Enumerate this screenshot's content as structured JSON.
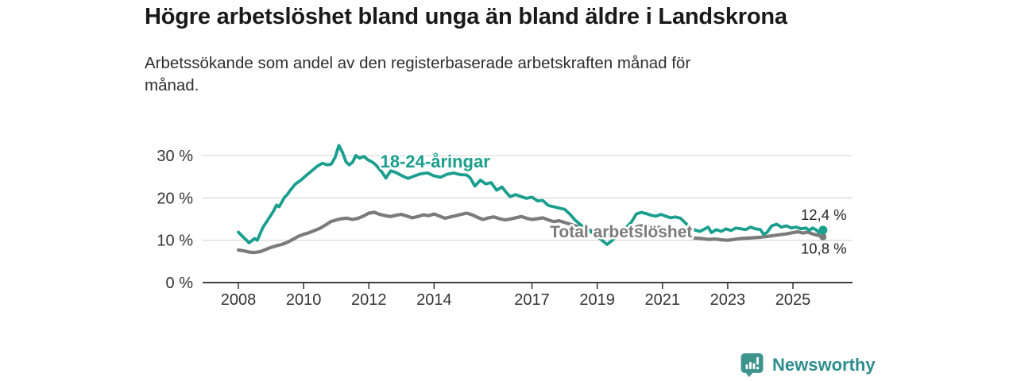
{
  "header": {
    "title": "Högre arbetslöshet bland unga än bland äldre i Landskrona",
    "subtitle": "Arbetssökande som andel av den registerbaserade arbetskraften månad för månad."
  },
  "chart_data": {
    "type": "line",
    "title": "Högre arbetslöshet bland unga än bland äldre i Landskrona",
    "xlabel": "",
    "ylabel": "Arbetssökande som andel av den registerbaserade arbetskraften",
    "x_axis": {
      "range": [
        2006.9,
        2026.8
      ],
      "ticks": [
        2008,
        2010,
        2012,
        2014,
        2017,
        2019,
        2021,
        2023,
        2025
      ]
    },
    "y_axis": {
      "range": [
        0,
        33.5
      ],
      "ticks": [
        {
          "value": 0,
          "label": "0 %"
        },
        {
          "value": 10,
          "label": "10 %"
        },
        {
          "value": 20,
          "label": "20 %"
        },
        {
          "value": 30,
          "label": "30 %"
        }
      ],
      "grid": true
    },
    "legend_position": "inline-labels",
    "series": [
      {
        "name": "Total arbetslöshet",
        "color": "#7b7b7b",
        "end_value": 10.8,
        "end_label": "10,8 %",
        "inline_label": {
          "text": "Total arbetslöshet",
          "x": 2017.55,
          "y": 10.7
        },
        "points": [
          [
            2008.0,
            7.7
          ],
          [
            2008.17,
            7.5
          ],
          [
            2008.33,
            7.2
          ],
          [
            2008.5,
            7.1
          ],
          [
            2008.67,
            7.3
          ],
          [
            2008.83,
            7.8
          ],
          [
            2009.0,
            8.3
          ],
          [
            2009.17,
            8.7
          ],
          [
            2009.33,
            9.0
          ],
          [
            2009.5,
            9.5
          ],
          [
            2009.67,
            10.2
          ],
          [
            2009.83,
            10.9
          ],
          [
            2010.0,
            11.4
          ],
          [
            2010.17,
            11.8
          ],
          [
            2010.33,
            12.3
          ],
          [
            2010.5,
            12.8
          ],
          [
            2010.67,
            13.6
          ],
          [
            2010.83,
            14.4
          ],
          [
            2011.0,
            14.8
          ],
          [
            2011.17,
            15.1
          ],
          [
            2011.33,
            15.2
          ],
          [
            2011.5,
            14.9
          ],
          [
            2011.67,
            15.2
          ],
          [
            2011.83,
            15.7
          ],
          [
            2012.0,
            16.4
          ],
          [
            2012.17,
            16.6
          ],
          [
            2012.33,
            16.1
          ],
          [
            2012.5,
            15.8
          ],
          [
            2012.67,
            15.6
          ],
          [
            2012.83,
            15.9
          ],
          [
            2013.0,
            16.1
          ],
          [
            2013.17,
            15.7
          ],
          [
            2013.33,
            15.3
          ],
          [
            2013.5,
            15.6
          ],
          [
            2013.67,
            16.0
          ],
          [
            2013.83,
            15.8
          ],
          [
            2014.0,
            16.2
          ],
          [
            2014.17,
            15.7
          ],
          [
            2014.33,
            15.2
          ],
          [
            2014.5,
            15.5
          ],
          [
            2014.67,
            15.8
          ],
          [
            2014.83,
            16.1
          ],
          [
            2015.0,
            16.4
          ],
          [
            2015.17,
            16.0
          ],
          [
            2015.33,
            15.4
          ],
          [
            2015.5,
            14.9
          ],
          [
            2015.67,
            15.3
          ],
          [
            2015.83,
            15.5
          ],
          [
            2016.0,
            15.1
          ],
          [
            2016.17,
            14.8
          ],
          [
            2016.33,
            15.0
          ],
          [
            2016.5,
            15.3
          ],
          [
            2016.67,
            15.6
          ],
          [
            2016.83,
            15.2
          ],
          [
            2017.0,
            14.9
          ],
          [
            2017.17,
            15.1
          ],
          [
            2017.33,
            15.3
          ],
          [
            2017.5,
            14.8
          ],
          [
            2017.67,
            14.4
          ],
          [
            2017.83,
            14.6
          ],
          [
            2018.0,
            14.2
          ],
          [
            2018.25,
            13.6
          ],
          [
            2018.5,
            13.0
          ],
          [
            2018.75,
            12.4
          ],
          [
            2019.0,
            11.9
          ],
          [
            2019.25,
            11.4
          ],
          [
            2019.5,
            11.2
          ],
          [
            2019.75,
            11.6
          ],
          [
            2020.0,
            12.2
          ],
          [
            2020.25,
            13.3
          ],
          [
            2020.5,
            13.6
          ],
          [
            2020.75,
            13.2
          ],
          [
            2021.0,
            12.9
          ],
          [
            2021.25,
            12.4
          ],
          [
            2021.5,
            11.8
          ],
          [
            2021.75,
            11.1
          ],
          [
            2022.0,
            10.5
          ],
          [
            2022.2,
            10.4
          ],
          [
            2022.4,
            10.2
          ],
          [
            2022.6,
            10.3
          ],
          [
            2022.8,
            10.1
          ],
          [
            2023.0,
            10.0
          ],
          [
            2023.2,
            10.2
          ],
          [
            2023.4,
            10.4
          ],
          [
            2023.6,
            10.5
          ],
          [
            2023.8,
            10.6
          ],
          [
            2024.0,
            10.7
          ],
          [
            2024.2,
            10.9
          ],
          [
            2024.4,
            11.1
          ],
          [
            2024.6,
            11.3
          ],
          [
            2024.8,
            11.5
          ],
          [
            2025.0,
            11.8
          ],
          [
            2025.15,
            12.0
          ],
          [
            2025.3,
            11.7
          ],
          [
            2025.45,
            11.9
          ],
          [
            2025.6,
            11.5
          ],
          [
            2025.75,
            11.2
          ],
          [
            2025.92,
            10.8
          ]
        ]
      },
      {
        "name": "18-24-åringar",
        "color": "#1a9e8d",
        "end_value": 12.4,
        "end_label": "12,4 %",
        "inline_label": {
          "text": "18-24-åringar",
          "x": 2012.35,
          "y": 27.2
        },
        "points": [
          [
            2008.0,
            11.9
          ],
          [
            2008.17,
            10.6
          ],
          [
            2008.33,
            9.4
          ],
          [
            2008.5,
            10.4
          ],
          [
            2008.58,
            10.0
          ],
          [
            2008.75,
            13.0
          ],
          [
            2008.92,
            15.0
          ],
          [
            2009.08,
            16.9
          ],
          [
            2009.17,
            18.3
          ],
          [
            2009.25,
            17.9
          ],
          [
            2009.42,
            20.2
          ],
          [
            2009.5,
            20.8
          ],
          [
            2009.58,
            21.7
          ],
          [
            2009.75,
            23.3
          ],
          [
            2009.92,
            24.2
          ],
          [
            2010.08,
            25.3
          ],
          [
            2010.25,
            26.4
          ],
          [
            2010.42,
            27.5
          ],
          [
            2010.58,
            28.2
          ],
          [
            2010.72,
            27.8
          ],
          [
            2010.85,
            28.0
          ],
          [
            2010.97,
            29.6
          ],
          [
            2011.08,
            32.4
          ],
          [
            2011.2,
            30.6
          ],
          [
            2011.3,
            28.5
          ],
          [
            2011.4,
            27.8
          ],
          [
            2011.5,
            28.4
          ],
          [
            2011.6,
            30.0
          ],
          [
            2011.72,
            29.4
          ],
          [
            2011.85,
            29.8
          ],
          [
            2011.97,
            29.0
          ],
          [
            2012.1,
            28.5
          ],
          [
            2012.2,
            27.9
          ],
          [
            2012.3,
            27.0
          ],
          [
            2012.42,
            25.9
          ],
          [
            2012.52,
            24.7
          ],
          [
            2012.67,
            26.4
          ],
          [
            2012.83,
            26.0
          ],
          [
            2013.0,
            25.3
          ],
          [
            2013.2,
            24.6
          ],
          [
            2013.4,
            25.2
          ],
          [
            2013.6,
            25.7
          ],
          [
            2013.8,
            25.9
          ],
          [
            2014.0,
            25.2
          ],
          [
            2014.2,
            24.9
          ],
          [
            2014.4,
            25.6
          ],
          [
            2014.6,
            25.9
          ],
          [
            2014.8,
            25.5
          ],
          [
            2015.0,
            25.4
          ],
          [
            2015.1,
            24.8
          ],
          [
            2015.25,
            22.8
          ],
          [
            2015.42,
            24.2
          ],
          [
            2015.58,
            23.3
          ],
          [
            2015.75,
            23.6
          ],
          [
            2015.92,
            21.8
          ],
          [
            2016.08,
            22.6
          ],
          [
            2016.2,
            21.4
          ],
          [
            2016.33,
            20.3
          ],
          [
            2016.5,
            20.8
          ],
          [
            2016.67,
            20.3
          ],
          [
            2016.83,
            19.9
          ],
          [
            2017.0,
            20.2
          ],
          [
            2017.17,
            19.3
          ],
          [
            2017.33,
            19.4
          ],
          [
            2017.5,
            18.2
          ],
          [
            2017.67,
            17.9
          ],
          [
            2017.83,
            17.6
          ],
          [
            2018.0,
            17.3
          ],
          [
            2018.17,
            16.1
          ],
          [
            2018.33,
            14.7
          ],
          [
            2018.5,
            13.6
          ],
          [
            2018.7,
            12.6
          ],
          [
            2018.9,
            11.5
          ],
          [
            2019.1,
            10.3
          ],
          [
            2019.3,
            9.0
          ],
          [
            2019.45,
            9.9
          ],
          [
            2019.6,
            11.0
          ],
          [
            2019.75,
            12.0
          ],
          [
            2019.9,
            13.1
          ],
          [
            2020.05,
            14.3
          ],
          [
            2020.2,
            16.2
          ],
          [
            2020.35,
            16.6
          ],
          [
            2020.5,
            16.3
          ],
          [
            2020.65,
            15.9
          ],
          [
            2020.8,
            15.7
          ],
          [
            2020.95,
            16.1
          ],
          [
            2021.1,
            15.7
          ],
          [
            2021.25,
            15.3
          ],
          [
            2021.4,
            15.5
          ],
          [
            2021.55,
            15.2
          ],
          [
            2021.7,
            14.1
          ],
          [
            2021.85,
            13.0
          ],
          [
            2022.0,
            12.4
          ],
          [
            2022.15,
            12.1
          ],
          [
            2022.3,
            12.7
          ],
          [
            2022.4,
            13.1
          ],
          [
            2022.5,
            11.8
          ],
          [
            2022.65,
            12.5
          ],
          [
            2022.8,
            12.1
          ],
          [
            2022.95,
            12.7
          ],
          [
            2023.1,
            12.3
          ],
          [
            2023.25,
            12.9
          ],
          [
            2023.4,
            12.7
          ],
          [
            2023.55,
            12.5
          ],
          [
            2023.7,
            13.1
          ],
          [
            2023.85,
            12.7
          ],
          [
            2024.0,
            12.5
          ],
          [
            2024.1,
            11.4
          ],
          [
            2024.2,
            11.8
          ],
          [
            2024.35,
            13.4
          ],
          [
            2024.5,
            13.8
          ],
          [
            2024.65,
            13.1
          ],
          [
            2024.8,
            13.4
          ],
          [
            2024.95,
            12.9
          ],
          [
            2025.1,
            13.1
          ],
          [
            2025.25,
            12.7
          ],
          [
            2025.4,
            12.9
          ],
          [
            2025.5,
            12.3
          ],
          [
            2025.6,
            12.9
          ],
          [
            2025.7,
            12.5
          ],
          [
            2025.8,
            11.8
          ],
          [
            2025.92,
            12.4
          ]
        ]
      }
    ]
  },
  "footer": {
    "brand": "Newsworthy",
    "brand_color": "#2e8d8d",
    "icon": "newsworthy-chart-speech-bubble"
  }
}
